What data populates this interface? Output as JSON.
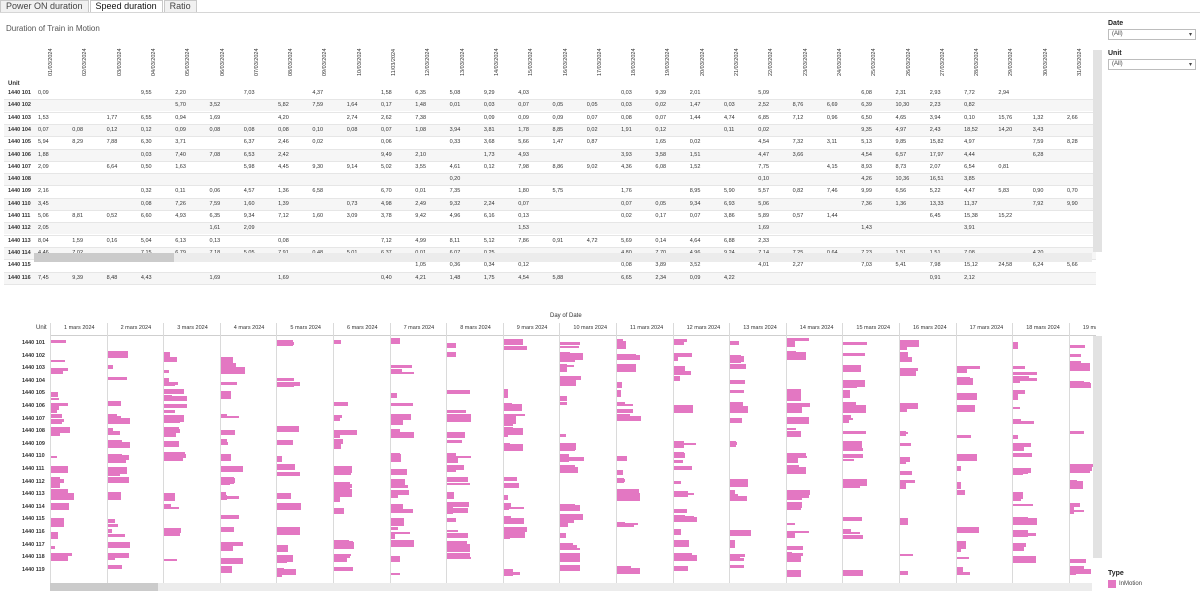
{
  "tabs": [
    {
      "label": "Power ON duration",
      "active": false
    },
    {
      "label": "Speed duration",
      "active": true
    },
    {
      "label": "Ratio",
      "active": false
    }
  ],
  "sheet_title": "Duration of Train in Motion",
  "table": {
    "unit_header": "Unit",
    "dates": [
      "01/03/2024",
      "02/03/2024",
      "03/03/2024",
      "04/03/2024",
      "05/03/2024",
      "06/03/2024",
      "07/03/2024",
      "08/03/2024",
      "09/03/2024",
      "10/03/2024",
      "11/03/2024",
      "12/03/2024",
      "13/03/2024",
      "14/03/2024",
      "15/03/2024",
      "16/03/2024",
      "17/03/2024",
      "18/03/2024",
      "19/03/2024",
      "20/03/2024",
      "21/03/2024",
      "22/03/2024",
      "23/03/2024",
      "24/03/2024",
      "25/03/2024",
      "26/03/2024",
      "27/03/2024",
      "28/03/2024",
      "29/03/2024",
      "30/03/2024",
      "31/03/2024"
    ],
    "rows": [
      {
        "unit": "1440 101",
        "values": [
          "0,09",
          "",
          "",
          "9,55",
          "2,20",
          "",
          "7,03",
          "",
          "4,37",
          "",
          "1,58",
          "6,35",
          "5,08",
          "9,29",
          "4,03",
          "",
          "",
          "0,03",
          "9,39",
          "2,01",
          "",
          "5,09",
          "",
          "",
          "6,08",
          "2,31",
          "2,93",
          "7,72",
          "2,94",
          "",
          ""
        ]
      },
      {
        "unit": "1440 102",
        "values": [
          "",
          "",
          "",
          "",
          "5,70",
          "3,52",
          "",
          "5,82",
          "7,59",
          "1,64",
          "0,17",
          "1,48",
          "0,01",
          "0,03",
          "0,07",
          "0,05",
          "0,05",
          "0,03",
          "0,02",
          "1,47",
          "0,03",
          "2,52",
          "8,76",
          "6,69",
          "6,39",
          "10,30",
          "2,23",
          "0,82",
          "",
          "",
          ""
        ]
      },
      {
        "unit": "1440 103",
        "values": [
          "1,53",
          "",
          "1,77",
          "6,55",
          "0,94",
          "1,69",
          "",
          "4,20",
          "",
          "2,74",
          "2,62",
          "7,38",
          "",
          "0,09",
          "0,09",
          "0,09",
          "0,07",
          "0,08",
          "0,07",
          "1,44",
          "4,74",
          "6,85",
          "7,12",
          "0,96",
          "6,50",
          "4,65",
          "3,94",
          "0,10",
          "15,76",
          "1,32",
          "2,66"
        ]
      },
      {
        "unit": "1440 104",
        "values": [
          "0,07",
          "0,08",
          "0,12",
          "0,12",
          "0,09",
          "0,08",
          "0,08",
          "0,08",
          "0,10",
          "0,08",
          "0,07",
          "1,08",
          "3,94",
          "3,81",
          "1,78",
          "8,85",
          "0,02",
          "1,91",
          "0,12",
          "",
          "0,11",
          "0,02",
          "",
          "",
          "9,35",
          "4,97",
          "2,43",
          "18,52",
          "14,20",
          "3,43",
          ""
        ]
      },
      {
        "unit": "1440 105",
        "values": [
          "5,94",
          "8,29",
          "7,88",
          "6,30",
          "3,71",
          "",
          "6,37",
          "2,46",
          "0,02",
          "",
          "0,06",
          "",
          "0,33",
          "3,68",
          "5,66",
          "1,47",
          "0,87",
          "",
          "1,65",
          "0,02",
          "",
          "4,54",
          "7,32",
          "3,11",
          "5,13",
          "9,85",
          "15,82",
          "4,97",
          "",
          "7,59",
          "8,28"
        ]
      },
      {
        "unit": "1440 106",
        "values": [
          "1,88",
          "",
          "",
          "0,03",
          "7,40",
          "7,08",
          "6,53",
          "2,42",
          "",
          "",
          "9,49",
          "2,10",
          "",
          "1,73",
          "4,93",
          "",
          "",
          "3,93",
          "3,58",
          "1,51",
          "",
          "4,47",
          "3,66",
          "",
          "4,54",
          "6,57",
          "17,97",
          "4,44",
          "",
          "6,28",
          ""
        ]
      },
      {
        "unit": "1440 107",
        "values": [
          "2,09",
          "",
          "6,64",
          "0,50",
          "1,63",
          "",
          "5,98",
          "4,45",
          "9,30",
          "9,14",
          "5,02",
          "3,55",
          "4,61",
          "0,12",
          "7,98",
          "8,86",
          "9,02",
          "4,36",
          "6,08",
          "1,52",
          "",
          "7,75",
          "",
          "4,15",
          "8,93",
          "8,73",
          "2,07",
          "6,54",
          "0,81",
          "",
          ""
        ]
      },
      {
        "unit": "1440 108",
        "values": [
          "",
          "",
          "",
          "",
          "",
          "",
          "",
          "",
          "",
          "",
          "",
          "",
          "0,20",
          "",
          "",
          "",
          "",
          "",
          "",
          "",
          "",
          "0,10",
          "",
          "",
          "4,26",
          "10,36",
          "16,51",
          "3,85",
          "",
          "",
          ""
        ]
      },
      {
        "unit": "1440 109",
        "values": [
          "2,16",
          "",
          "",
          "0,32",
          "0,11",
          "0,06",
          "4,57",
          "1,36",
          "6,58",
          "",
          "6,70",
          "0,01",
          "7,35",
          "",
          "1,80",
          "5,75",
          "",
          "1,76",
          "",
          "8,95",
          "5,90",
          "5,57",
          "0,82",
          "7,46",
          "9,99",
          "6,56",
          "5,22",
          "4,47",
          "5,83",
          "0,90",
          "0,70"
        ]
      },
      {
        "unit": "1440 110",
        "values": [
          "3,45",
          "",
          "",
          "0,08",
          "7,26",
          "7,59",
          "1,60",
          "1,39",
          "",
          "0,73",
          "4,98",
          "2,49",
          "9,32",
          "2,24",
          "0,07",
          "",
          "",
          "0,07",
          "0,05",
          "9,34",
          "6,93",
          "5,06",
          "",
          "",
          "7,36",
          "1,36",
          "13,33",
          "11,37",
          "",
          "7,92",
          "9,90"
        ]
      },
      {
        "unit": "1440 111",
        "values": [
          "5,06",
          "8,81",
          "0,52",
          "6,60",
          "4,93",
          "6,35",
          "9,34",
          "7,12",
          "1,60",
          "3,09",
          "3,78",
          "9,42",
          "4,96",
          "6,16",
          "0,13",
          "",
          "",
          "0,02",
          "0,17",
          "0,07",
          "3,86",
          "5,89",
          "0,57",
          "1,44",
          "",
          "",
          "6,45",
          "15,38",
          "15,22",
          "",
          ""
        ]
      },
      {
        "unit": "1440 112",
        "values": [
          "2,05",
          "",
          "",
          "",
          "",
          "1,61",
          "2,09",
          "",
          "",
          "",
          "",
          "",
          "",
          "",
          "1,53",
          "",
          "",
          "",
          "",
          "",
          "",
          "1,69",
          "",
          "",
          "1,43",
          "",
          "",
          "3,91",
          "",
          "",
          ""
        ]
      },
      {
        "unit": "1440 113",
        "values": [
          "8,04",
          "1,59",
          "0,16",
          "5,04",
          "6,13",
          "0,13",
          "",
          "0,08",
          "",
          "",
          "7,12",
          "4,99",
          "8,11",
          "5,12",
          "7,86",
          "0,91",
          "4,72",
          "5,69",
          "0,14",
          "4,64",
          "6,88",
          "2,33",
          "",
          "",
          "",
          "",
          "",
          "",
          "",
          "",
          ""
        ]
      },
      {
        "unit": "1440 114",
        "values": [
          "4,46",
          "7,02",
          "",
          "7,15",
          "6,79",
          "7,18",
          "5,05",
          "7,91",
          "0,48",
          "5,01",
          "6,37",
          "0,01",
          "6,07",
          "0,25",
          "",
          "",
          "",
          "4,80",
          "7,70",
          "4,96",
          "9,24",
          "7,14",
          "7,25",
          "0,64",
          "7,23",
          "1,51",
          "1,51",
          "7,08",
          "",
          "4,20",
          ""
        ]
      },
      {
        "unit": "1440 115",
        "values": [
          "",
          "",
          "",
          "",
          "",
          "",
          "",
          "",
          "",
          "",
          "",
          "1,05",
          "0,36",
          "0,34",
          "0,12",
          "",
          "",
          "0,08",
          "3,89",
          "3,52",
          "",
          "4,01",
          "2,27",
          "",
          "7,03",
          "5,41",
          "7,98",
          "15,12",
          "24,58",
          "6,24",
          "5,66"
        ]
      },
      {
        "unit": "1440 116",
        "values": [
          "7,45",
          "9,39",
          "8,48",
          "4,43",
          "",
          "1,69",
          "",
          "1,69",
          "",
          "",
          "0,40",
          "4,21",
          "1,48",
          "1,75",
          "4,54",
          "5,88",
          "",
          "6,65",
          "2,34",
          "0,09",
          "4,22",
          "",
          "",
          "",
          "",
          "",
          "0,91",
          "2,12",
          "",
          "",
          ""
        ]
      }
    ]
  },
  "filters": [
    {
      "label": "Date",
      "value": "(All)"
    },
    {
      "label": "Unit",
      "value": "(All)"
    }
  ],
  "chart_data": {
    "type": "bar",
    "title": "Day of Date",
    "row_header": "Unit",
    "columns": [
      "1 mars 2024",
      "2 mars 2024",
      "3 mars 2024",
      "4 mars 2024",
      "5 mars 2024",
      "6 mars 2024",
      "7 mars 2024",
      "8 mars 2024",
      "9 mars 2024",
      "10 mars 2024",
      "11 mars 2024",
      "12 mars 2024",
      "13 mars 2024",
      "14 mars 2024",
      "15 mars 2024",
      "16 mars 2024",
      "17 mars 2024",
      "18 mars 2024",
      "19 ma"
    ],
    "rows": [
      "1440 101",
      "1440 102",
      "1440 103",
      "1440 104",
      "1440 105",
      "1440 106",
      "1440 107",
      "1440 108",
      "1440 109",
      "1440 110",
      "1440 111",
      "1440 112",
      "1440 113",
      "1440 114",
      "1440 115",
      "1440 116",
      "1440 117",
      "1440 118",
      "1440 119"
    ],
    "series": [
      {
        "name": "InMotion",
        "color": "#e377c2"
      }
    ],
    "note_scale_max": 1
  },
  "legend": {
    "title": "Type",
    "items": [
      {
        "label": "InMotion",
        "color": "#e377c2"
      }
    ]
  }
}
